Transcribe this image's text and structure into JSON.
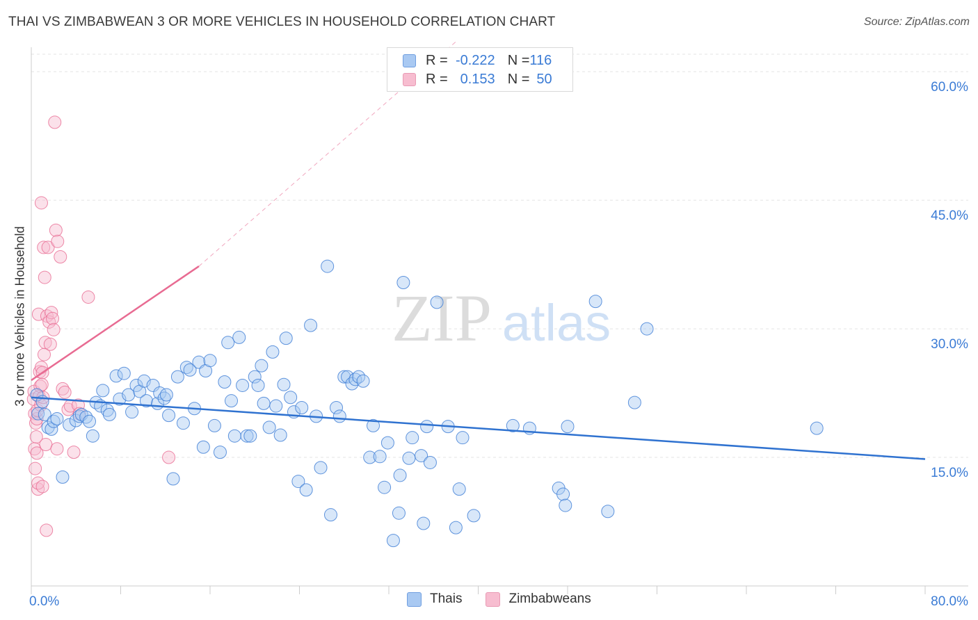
{
  "title": "THAI VS ZIMBABWEAN 3 OR MORE VEHICLES IN HOUSEHOLD CORRELATION CHART",
  "source": "Source: ZipAtlas.com",
  "watermark": {
    "zip": "ZIP",
    "atlas": "atlas"
  },
  "colors": {
    "blue": "#3a7bd5",
    "blue_fill": "#a9c9f2",
    "blue_line": "#2f72d0",
    "pink": "#e86b92",
    "pink_fill": "#f7bdd0",
    "grid": "#e3e3e3",
    "axis_text": "#3a7bd5"
  },
  "legend_top": [
    {
      "r_key": "R = ",
      "r_value": "-0.222",
      "n_key": "N = ",
      "n_value": "116",
      "series": "blue"
    },
    {
      "r_key": "R = ",
      "r_value": "0.153",
      "n_key": "N = ",
      "n_value": "50",
      "series": "pink"
    }
  ],
  "legend_bottom": [
    {
      "label": "Thais",
      "series": "blue"
    },
    {
      "label": "Zimbabweans",
      "series": "pink"
    }
  ],
  "chart_data": {
    "type": "scatter",
    "title": "THAI VS ZIMBABWEAN 3 OR MORE VEHICLES IN HOUSEHOLD CORRELATION CHART",
    "xlabel": "",
    "ylabel": "3 or more Vehicles in Household",
    "xlim": [
      0,
      80
    ],
    "ylim": [
      0,
      63.5
    ],
    "x_tick_labels": [
      {
        "value": 0,
        "label": "0.0%"
      },
      {
        "value": 80,
        "label": "80.0%"
      }
    ],
    "y_tick_labels": [
      {
        "value": 15,
        "label": "15.0%"
      },
      {
        "value": 30,
        "label": "30.0%"
      },
      {
        "value": 45,
        "label": "45.0%"
      },
      {
        "value": 60,
        "label": "60.0%"
      }
    ],
    "series": [
      {
        "name": "Thais",
        "color": "blue",
        "trend": {
          "x0": 0,
          "y0": 22.0,
          "x1": 80,
          "y1": 14.8
        },
        "points": [
          [
            0.5,
            22.3
          ],
          [
            0.6,
            20.1
          ],
          [
            1.0,
            21.5
          ],
          [
            1.2,
            20.0
          ],
          [
            1.5,
            18.5
          ],
          [
            1.8,
            18.3
          ],
          [
            2.0,
            19.2
          ],
          [
            2.3,
            19.5
          ],
          [
            2.8,
            12.7
          ],
          [
            3.4,
            18.8
          ],
          [
            4.0,
            19.3
          ],
          [
            4.3,
            19.8
          ],
          [
            4.5,
            20.0
          ],
          [
            4.9,
            19.7
          ],
          [
            5.2,
            19.2
          ],
          [
            5.5,
            17.5
          ],
          [
            5.8,
            21.4
          ],
          [
            6.2,
            21.0
          ],
          [
            6.4,
            22.8
          ],
          [
            6.8,
            20.5
          ],
          [
            7.0,
            20.0
          ],
          [
            7.6,
            24.5
          ],
          [
            7.9,
            21.8
          ],
          [
            8.3,
            24.8
          ],
          [
            8.7,
            22.3
          ],
          [
            9.0,
            20.3
          ],
          [
            9.4,
            23.4
          ],
          [
            9.7,
            22.7
          ],
          [
            10.1,
            23.9
          ],
          [
            10.3,
            21.6
          ],
          [
            10.9,
            23.4
          ],
          [
            11.3,
            21.3
          ],
          [
            11.5,
            22.5
          ],
          [
            11.9,
            21.9
          ],
          [
            12.1,
            22.3
          ],
          [
            12.3,
            19.9
          ],
          [
            12.7,
            12.5
          ],
          [
            13.1,
            24.4
          ],
          [
            13.6,
            19.0
          ],
          [
            13.9,
            25.5
          ],
          [
            14.2,
            25.2
          ],
          [
            14.6,
            20.7
          ],
          [
            15.0,
            26.1
          ],
          [
            15.4,
            16.2
          ],
          [
            15.6,
            25.1
          ],
          [
            16.0,
            26.3
          ],
          [
            16.4,
            18.7
          ],
          [
            16.9,
            15.6
          ],
          [
            17.3,
            23.8
          ],
          [
            17.6,
            28.4
          ],
          [
            17.9,
            21.6
          ],
          [
            18.2,
            17.5
          ],
          [
            18.6,
            29.0
          ],
          [
            18.9,
            23.4
          ],
          [
            19.3,
            17.5
          ],
          [
            19.6,
            17.5
          ],
          [
            20.0,
            24.4
          ],
          [
            20.3,
            23.4
          ],
          [
            20.6,
            25.7
          ],
          [
            20.8,
            21.3
          ],
          [
            21.3,
            18.5
          ],
          [
            21.6,
            27.3
          ],
          [
            21.9,
            21.0
          ],
          [
            22.3,
            17.6
          ],
          [
            22.6,
            23.5
          ],
          [
            22.8,
            28.9
          ],
          [
            23.2,
            22.0
          ],
          [
            23.5,
            20.3
          ],
          [
            23.9,
            12.2
          ],
          [
            24.2,
            20.8
          ],
          [
            24.6,
            11.2
          ],
          [
            25.0,
            30.4
          ],
          [
            25.5,
            19.8
          ],
          [
            25.9,
            13.8
          ],
          [
            26.5,
            37.3
          ],
          [
            26.8,
            8.3
          ],
          [
            27.3,
            20.8
          ],
          [
            27.6,
            19.8
          ],
          [
            28.0,
            24.4
          ],
          [
            28.3,
            24.4
          ],
          [
            28.7,
            23.6
          ],
          [
            29.0,
            24.1
          ],
          [
            29.3,
            24.4
          ],
          [
            29.7,
            23.9
          ],
          [
            30.3,
            15.0
          ],
          [
            30.6,
            18.7
          ],
          [
            31.2,
            15.1
          ],
          [
            31.6,
            11.5
          ],
          [
            31.9,
            16.7
          ],
          [
            32.4,
            5.3
          ],
          [
            32.9,
            8.5
          ],
          [
            33.0,
            12.9
          ],
          [
            33.3,
            35.4
          ],
          [
            33.8,
            14.9
          ],
          [
            34.1,
            17.3
          ],
          [
            34.9,
            15.2
          ],
          [
            35.1,
            7.3
          ],
          [
            35.4,
            18.6
          ],
          [
            35.7,
            14.4
          ],
          [
            36.3,
            33.1
          ],
          [
            37.3,
            18.6
          ],
          [
            38.0,
            6.8
          ],
          [
            38.3,
            11.3
          ],
          [
            38.6,
            17.3
          ],
          [
            39.6,
            8.2
          ],
          [
            43.1,
            18.7
          ],
          [
            44.6,
            18.4
          ],
          [
            47.2,
            11.4
          ],
          [
            47.6,
            10.7
          ],
          [
            47.8,
            9.4
          ],
          [
            48.0,
            18.6
          ],
          [
            50.5,
            33.2
          ],
          [
            51.6,
            8.7
          ],
          [
            54.0,
            21.4
          ],
          [
            55.1,
            30.0
          ],
          [
            70.3,
            18.4
          ]
        ]
      },
      {
        "name": "Zimbabweans",
        "color": "pink",
        "trend": {
          "x0": 0,
          "y0": 24.0,
          "x1": 15,
          "y1": 37.3
        },
        "trend_extension": {
          "x0": 15,
          "y0": 37.3,
          "x1": 38,
          "y1": 63.5
        },
        "points": [
          [
            0.2,
            21.8
          ],
          [
            0.25,
            22.7
          ],
          [
            0.3,
            20.1
          ],
          [
            0.3,
            16.0
          ],
          [
            0.35,
            13.7
          ],
          [
            0.4,
            19.0
          ],
          [
            0.45,
            17.4
          ],
          [
            0.5,
            15.5
          ],
          [
            0.5,
            19.5
          ],
          [
            0.55,
            20.5
          ],
          [
            0.6,
            11.3
          ],
          [
            0.6,
            12.0
          ],
          [
            0.65,
            31.7
          ],
          [
            0.7,
            22.1
          ],
          [
            0.75,
            25.0
          ],
          [
            0.8,
            23.3
          ],
          [
            0.85,
            21.1
          ],
          [
            0.9,
            25.5
          ],
          [
            0.9,
            44.7
          ],
          [
            0.95,
            23.5
          ],
          [
            1.0,
            11.6
          ],
          [
            1.0,
            24.9
          ],
          [
            1.05,
            22.0
          ],
          [
            1.1,
            39.5
          ],
          [
            1.15,
            27.0
          ],
          [
            1.2,
            36.0
          ],
          [
            1.25,
            28.4
          ],
          [
            1.3,
            16.5
          ],
          [
            1.35,
            6.5
          ],
          [
            1.4,
            31.5
          ],
          [
            1.5,
            39.5
          ],
          [
            1.6,
            30.8
          ],
          [
            1.7,
            28.2
          ],
          [
            1.8,
            31.9
          ],
          [
            1.9,
            31.2
          ],
          [
            2.0,
            29.9
          ],
          [
            2.1,
            54.1
          ],
          [
            2.2,
            41.5
          ],
          [
            2.3,
            16.0
          ],
          [
            2.35,
            40.2
          ],
          [
            2.6,
            38.4
          ],
          [
            2.8,
            23.0
          ],
          [
            3.0,
            22.6
          ],
          [
            3.3,
            20.6
          ],
          [
            3.5,
            21.0
          ],
          [
            3.8,
            15.6
          ],
          [
            4.2,
            21.1
          ],
          [
            4.3,
            20.1
          ],
          [
            5.1,
            33.7
          ],
          [
            12.3,
            15.0
          ]
        ]
      }
    ]
  }
}
